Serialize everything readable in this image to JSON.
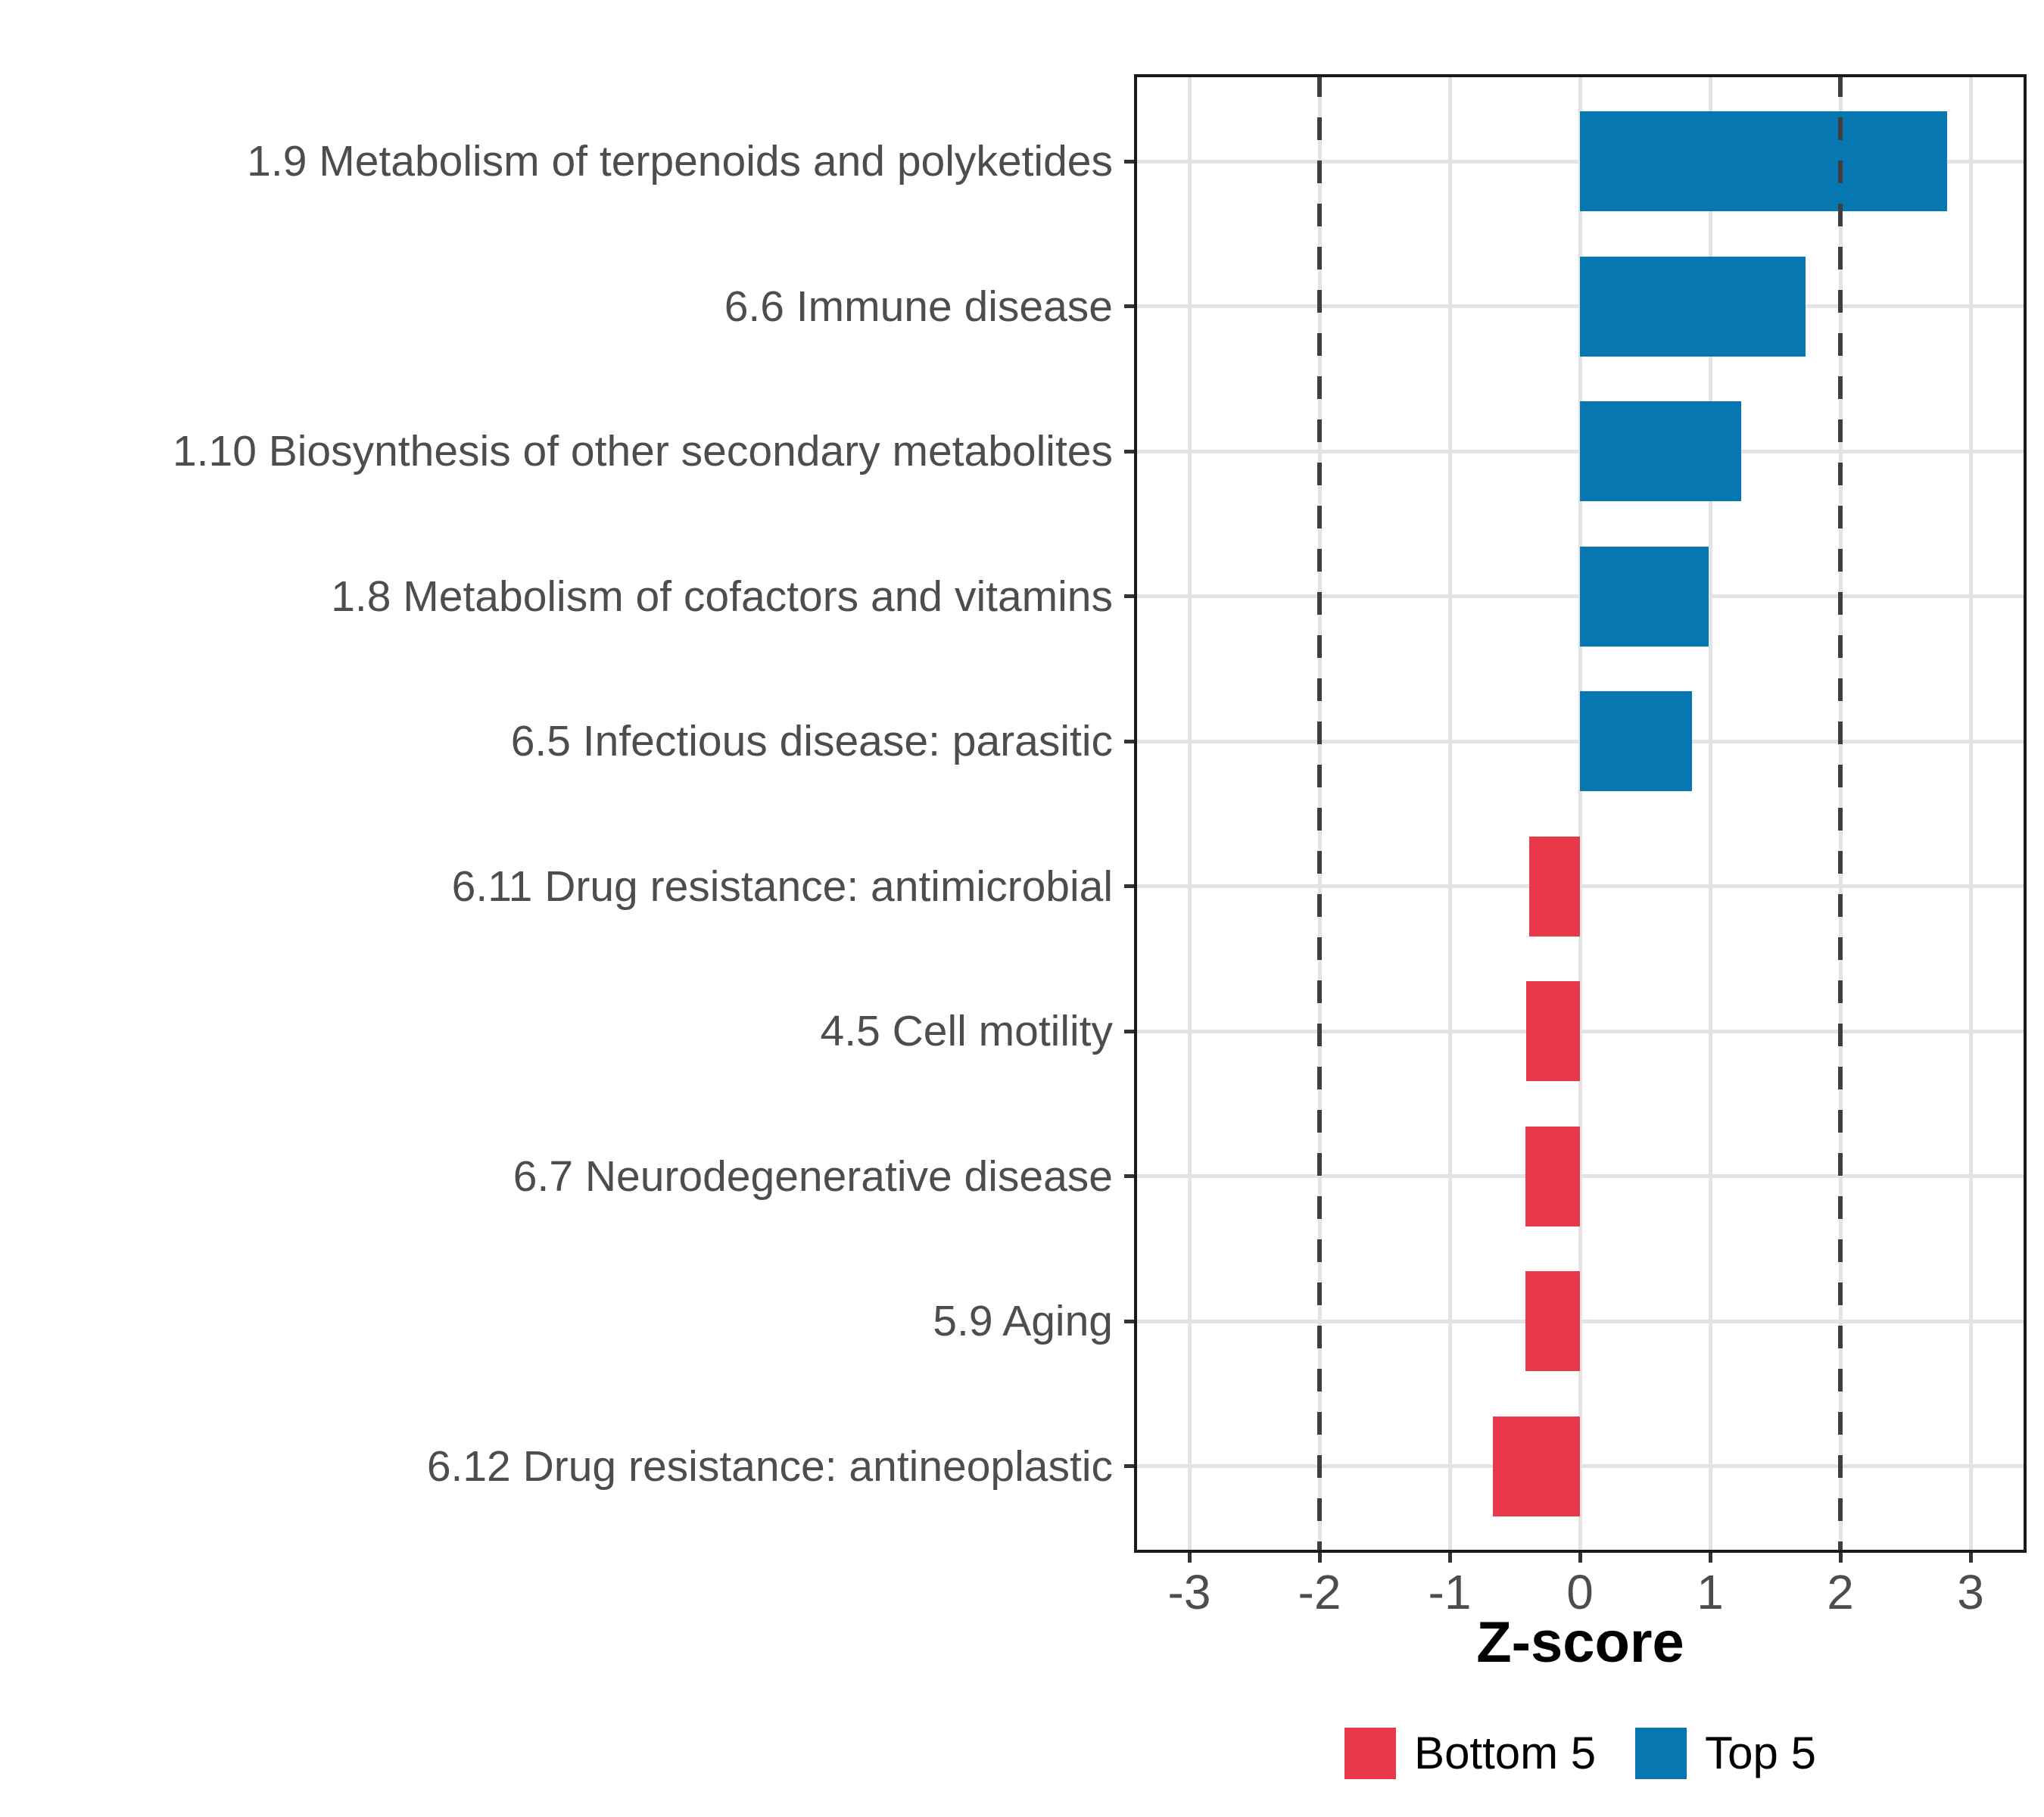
{
  "chart_data": {
    "type": "bar",
    "orientation": "horizontal",
    "title": "",
    "xlabel": "Z-score",
    "categories": [
      "1.9 Metabolism of terpenoids and polyketides",
      "6.6 Immune disease",
      "1.10 Biosynthesis of other secondary metabolites",
      "1.8 Metabolism of cofactors and vitamins",
      "6.5 Infectious disease: parasitic",
      "6.11 Drug resistance: antimicrobial",
      "4.5 Cell motility",
      "6.7 Neurodegenerative disease",
      "5.9 Aging",
      "6.12 Drug resistance: antineoplastic"
    ],
    "series": [
      {
        "name": "Z-score",
        "values": [
          2.82,
          1.73,
          1.24,
          0.99,
          0.86,
          -0.39,
          -0.41,
          -0.42,
          -0.42,
          -0.67
        ]
      }
    ],
    "groups": [
      "Top 5",
      "Top 5",
      "Top 5",
      "Top 5",
      "Top 5",
      "Bottom 5",
      "Bottom 5",
      "Bottom 5",
      "Bottom 5",
      "Bottom 5"
    ],
    "x_ticks": [
      -3,
      -2,
      -1,
      0,
      1,
      2,
      3
    ],
    "x_tick_labels": [
      "-3",
      "-2",
      "-1",
      "0",
      "1",
      "2",
      "3"
    ],
    "xlim": [
      -3.43,
      3.43
    ],
    "reference_lines": [
      -2,
      2
    ],
    "grid": true,
    "legend_position": "bottom",
    "legend": [
      {
        "label": "Bottom 5",
        "color": "#e7394a"
      },
      {
        "label": "Top 5",
        "color": "#0777b2"
      }
    ],
    "colors": {
      "top5_blue": "#0777b2",
      "bottom5_red": "#e7394a",
      "refline_gray": "#3f3f3f",
      "gridline_gray": "#e3e3e3",
      "axis_text_gray": "#4d4d4d"
    }
  }
}
